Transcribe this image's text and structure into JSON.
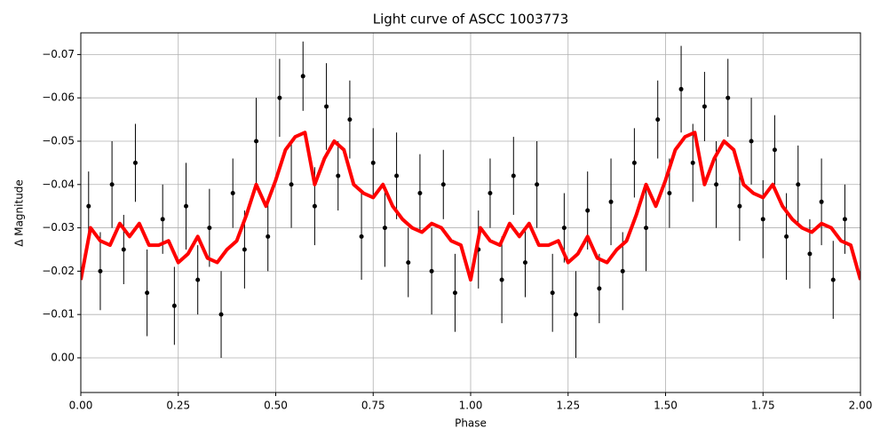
{
  "chart_data": {
    "type": "scatter",
    "title": "Light curve of ASCC 1003773",
    "x_label": "Phase",
    "y_label": "Δ Magnitude",
    "xlim": [
      0,
      2
    ],
    "ylim": [
      0.008,
      -0.075
    ],
    "xticks": [
      {
        "value": 0,
        "label": "0.00"
      },
      {
        "value": 0.25,
        "label": "0.25"
      },
      {
        "value": 0.5,
        "label": "0.50"
      },
      {
        "value": 0.75,
        "label": "0.75"
      },
      {
        "value": 1,
        "label": "1.00"
      },
      {
        "value": 1.25,
        "label": "1.25"
      },
      {
        "value": 1.5,
        "label": "1.50"
      },
      {
        "value": 1.75,
        "label": "1.75"
      },
      {
        "value": 2,
        "label": "2.00"
      }
    ],
    "yticks": [
      {
        "value": 0,
        "label": "0.00"
      },
      {
        "value": -0.01,
        "label": "−0.01"
      },
      {
        "value": -0.02,
        "label": "−0.02"
      },
      {
        "value": -0.03,
        "label": "−0.03"
      },
      {
        "value": -0.04,
        "label": "−0.04"
      },
      {
        "value": -0.05,
        "label": "−0.05"
      },
      {
        "value": -0.06,
        "label": "−0.06"
      },
      {
        "value": -0.07,
        "label": "−0.07"
      }
    ],
    "grid": true,
    "series": [
      {
        "style": "errorbar",
        "color": "#000000",
        "x": [
          0.02,
          0.05,
          0.08,
          0.11,
          0.14,
          0.17,
          0.21,
          0.24,
          0.27,
          0.3,
          0.33,
          0.36,
          0.39,
          0.42,
          0.45,
          0.48,
          0.51,
          0.54,
          0.57,
          0.6,
          0.63,
          0.66,
          0.69,
          0.72,
          0.75,
          0.78,
          0.81,
          0.84,
          0.87,
          0.9,
          0.93,
          0.96,
          1.02,
          1.05,
          1.08,
          1.11,
          1.14,
          1.17,
          1.21,
          1.24,
          1.27,
          1.3,
          1.33,
          1.36,
          1.39,
          1.42,
          1.45,
          1.48,
          1.51,
          1.54,
          1.57,
          1.6,
          1.63,
          1.66,
          1.69,
          1.72,
          1.75,
          1.78,
          1.81,
          1.84,
          1.87,
          1.9,
          1.93,
          1.96
        ],
        "values": [
          -0.035,
          -0.02,
          -0.04,
          -0.025,
          -0.045,
          -0.015,
          -0.032,
          -0.012,
          -0.035,
          -0.018,
          -0.03,
          -0.01,
          -0.038,
          -0.025,
          -0.05,
          -0.028,
          -0.06,
          -0.04,
          -0.065,
          -0.035,
          -0.058,
          -0.042,
          -0.055,
          -0.028,
          -0.045,
          -0.03,
          -0.042,
          -0.022,
          -0.038,
          -0.02,
          -0.04,
          -0.015,
          -0.025,
          -0.038,
          -0.018,
          -0.042,
          -0.022,
          -0.04,
          -0.015,
          -0.03,
          -0.01,
          -0.034,
          -0.016,
          -0.036,
          -0.02,
          -0.045,
          -0.03,
          -0.055,
          -0.038,
          -0.062,
          -0.045,
          -0.058,
          -0.04,
          -0.06,
          -0.035,
          -0.05,
          -0.032,
          -0.048,
          -0.028,
          -0.04,
          -0.024,
          -0.036,
          -0.018,
          -0.032
        ],
        "errors": [
          0.008,
          0.009,
          0.01,
          0.008,
          0.009,
          0.01,
          0.008,
          0.009,
          0.01,
          0.008,
          0.009,
          0.01,
          0.008,
          0.009,
          0.01,
          0.008,
          0.009,
          0.01,
          0.008,
          0.009,
          0.01,
          0.008,
          0.009,
          0.01,
          0.008,
          0.009,
          0.01,
          0.008,
          0.009,
          0.01,
          0.008,
          0.009,
          0.009,
          0.008,
          0.01,
          0.009,
          0.008,
          0.01,
          0.009,
          0.008,
          0.01,
          0.009,
          0.008,
          0.01,
          0.009,
          0.008,
          0.01,
          0.009,
          0.008,
          0.01,
          0.009,
          0.008,
          0.01,
          0.009,
          0.008,
          0.01,
          0.009,
          0.008,
          0.01,
          0.009,
          0.008,
          0.01,
          0.009,
          0.008
        ]
      },
      {
        "style": "line",
        "color": "#ff0000",
        "x": [
          0,
          0.025,
          0.05,
          0.075,
          0.1,
          0.125,
          0.15,
          0.175,
          0.2,
          0.225,
          0.25,
          0.275,
          0.3,
          0.325,
          0.35,
          0.375,
          0.4,
          0.425,
          0.45,
          0.475,
          0.5,
          0.525,
          0.55,
          0.575,
          0.6,
          0.625,
          0.65,
          0.675,
          0.7,
          0.725,
          0.75,
          0.775,
          0.8,
          0.825,
          0.85,
          0.875,
          0.9,
          0.925,
          0.95,
          0.975,
          1,
          1.025,
          1.05,
          1.075,
          1.1,
          1.125,
          1.15,
          1.175,
          1.2,
          1.225,
          1.25,
          1.275,
          1.3,
          1.325,
          1.35,
          1.375,
          1.4,
          1.425,
          1.45,
          1.475,
          1.5,
          1.525,
          1.55,
          1.575,
          1.6,
          1.625,
          1.65,
          1.675,
          1.7,
          1.725,
          1.75,
          1.775,
          1.8,
          1.825,
          1.85,
          1.875,
          1.9,
          1.925,
          1.95,
          1.975,
          2
        ],
        "values": [
          -0.018,
          -0.03,
          -0.027,
          -0.026,
          -0.031,
          -0.028,
          -0.031,
          -0.026,
          -0.026,
          -0.027,
          -0.022,
          -0.024,
          -0.028,
          -0.023,
          -0.022,
          -0.025,
          -0.027,
          -0.033,
          -0.04,
          -0.035,
          -0.041,
          -0.048,
          -0.051,
          -0.052,
          -0.04,
          -0.046,
          -0.05,
          -0.048,
          -0.04,
          -0.038,
          -0.037,
          -0.04,
          -0.035,
          -0.032,
          -0.03,
          -0.029,
          -0.031,
          -0.03,
          -0.027,
          -0.026,
          -0.018,
          -0.03,
          -0.027,
          -0.026,
          -0.031,
          -0.028,
          -0.031,
          -0.026,
          -0.026,
          -0.027,
          -0.022,
          -0.024,
          -0.028,
          -0.023,
          -0.022,
          -0.025,
          -0.027,
          -0.033,
          -0.04,
          -0.035,
          -0.041,
          -0.048,
          -0.051,
          -0.052,
          -0.04,
          -0.046,
          -0.05,
          -0.048,
          -0.04,
          -0.038,
          -0.037,
          -0.04,
          -0.035,
          -0.032,
          -0.03,
          -0.029,
          -0.031,
          -0.03,
          -0.027,
          -0.026,
          -0.018
        ]
      }
    ]
  }
}
